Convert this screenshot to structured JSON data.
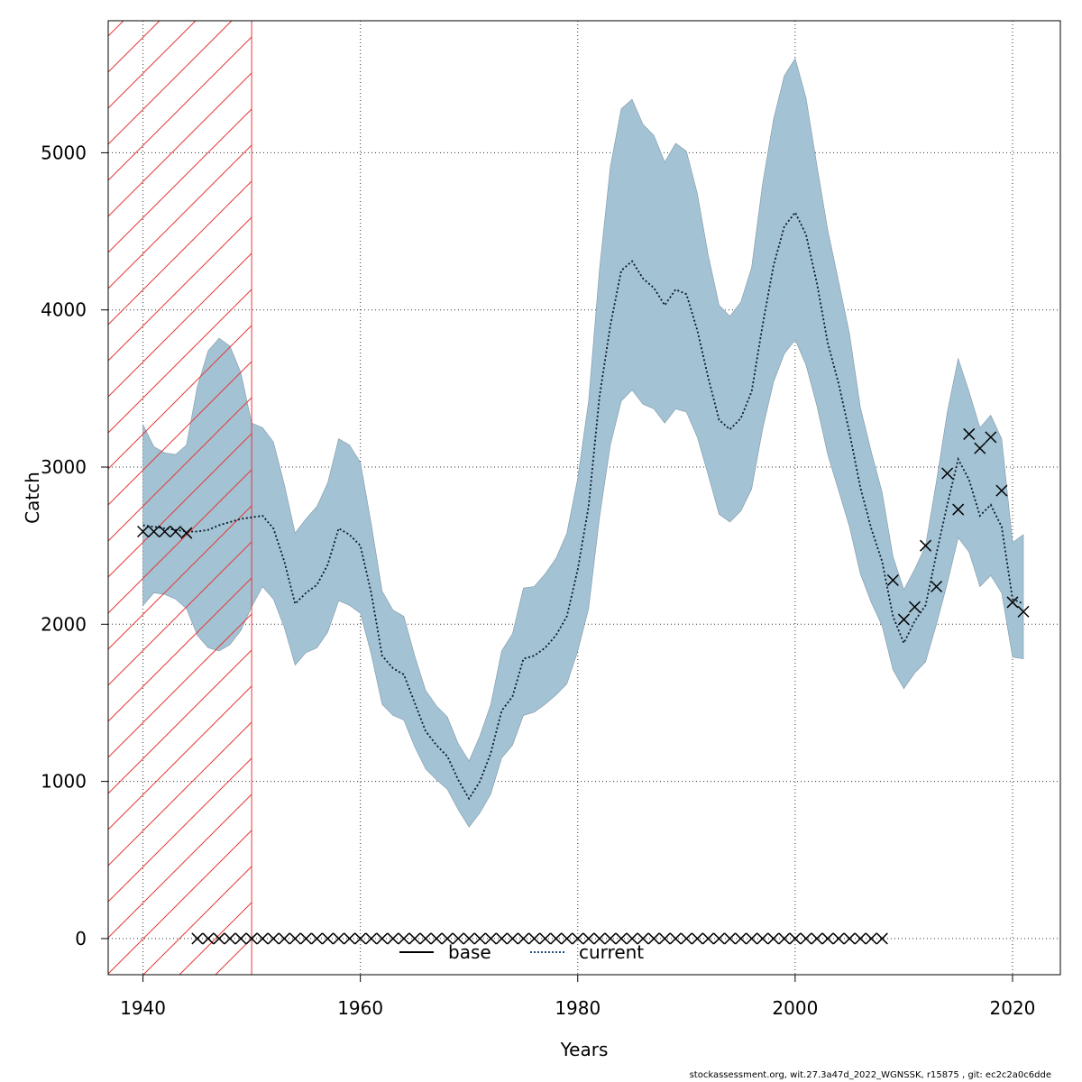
{
  "footer": "stockassessment.org, wit.27.3a47d_2022_WGNSSK, r15875 , git: ec2c2a0c6dde",
  "chart_data": {
    "type": "line",
    "xlabel": "Years",
    "ylabel": "Catch",
    "xlim": [
      1936.8,
      2024.4
    ],
    "ylim": [
      -230,
      5840
    ],
    "grid": true,
    "x_ticks": [
      1940,
      1960,
      1980,
      2000,
      2020
    ],
    "y_ticks": [
      0,
      1000,
      2000,
      3000,
      4000,
      5000
    ],
    "shaded_region": {
      "x_start": 1936.8,
      "x_end": 1950,
      "style": "red-hatch"
    },
    "colors": {
      "band": "#a3c2d4",
      "band_edge": "#7f98a8",
      "current": "#1f4e79",
      "base": "#000000",
      "hatch": "#e23a3a",
      "grid": "#333333"
    },
    "legend": {
      "placement": "bottom-center",
      "entries": [
        {
          "name": "base",
          "style": "solid"
        },
        {
          "name": "current",
          "style": "dotted"
        }
      ]
    },
    "years": [
      1940,
      1941,
      1942,
      1943,
      1944,
      1945,
      1946,
      1947,
      1948,
      1949,
      1950,
      1951,
      1952,
      1953,
      1954,
      1955,
      1956,
      1957,
      1958,
      1959,
      1960,
      1961,
      1962,
      1963,
      1964,
      1965,
      1966,
      1967,
      1968,
      1969,
      1970,
      1971,
      1972,
      1973,
      1974,
      1975,
      1976,
      1977,
      1978,
      1979,
      1980,
      1981,
      1982,
      1983,
      1984,
      1985,
      1986,
      1987,
      1988,
      1989,
      1990,
      1991,
      1992,
      1993,
      1994,
      1995,
      1996,
      1997,
      1998,
      1999,
      2000,
      2001,
      2002,
      2003,
      2004,
      2005,
      2006,
      2007,
      2008,
      2009,
      2010,
      2011,
      2012,
      2013,
      2014,
      2015,
      2016,
      2017,
      2018,
      2019,
      2020,
      2021
    ],
    "series": [
      {
        "name": "current",
        "values": [
          2630,
          2620,
          2610,
          2600,
          2590,
          2590,
          2600,
          2630,
          2650,
          2670,
          2680,
          2690,
          2610,
          2400,
          2130,
          2200,
          2250,
          2380,
          2610,
          2570,
          2500,
          2200,
          1800,
          1720,
          1680,
          1500,
          1320,
          1230,
          1160,
          1010,
          890,
          1000,
          1180,
          1450,
          1540,
          1780,
          1800,
          1850,
          1930,
          2050,
          2350,
          2750,
          3450,
          3900,
          4250,
          4310,
          4200,
          4140,
          4030,
          4130,
          4100,
          3870,
          3570,
          3300,
          3240,
          3310,
          3480,
          3900,
          4280,
          4530,
          4620,
          4480,
          4170,
          3790,
          3530,
          3220,
          2870,
          2610,
          2400,
          2050,
          1880,
          2020,
          2120,
          2450,
          2760,
          3050,
          2920,
          2690,
          2760,
          2620,
          2160,
          2130
        ]
      },
      {
        "name": "upper",
        "values": [
          3270,
          3130,
          3090,
          3080,
          3140,
          3510,
          3740,
          3820,
          3770,
          3600,
          3280,
          3250,
          3160,
          2890,
          2580,
          2670,
          2750,
          2900,
          3180,
          3140,
          3030,
          2640,
          2210,
          2090,
          2050,
          1800,
          1580,
          1480,
          1410,
          1240,
          1130,
          1290,
          1490,
          1830,
          1940,
          2230,
          2240,
          2320,
          2420,
          2580,
          2930,
          3420,
          4260,
          4910,
          5280,
          5340,
          5180,
          5110,
          4940,
          5060,
          5010,
          4740,
          4350,
          4030,
          3960,
          4050,
          4270,
          4800,
          5210,
          5490,
          5600,
          5350,
          4920,
          4510,
          4180,
          3850,
          3380,
          3100,
          2840,
          2430,
          2220,
          2350,
          2500,
          2910,
          3350,
          3690,
          3480,
          3250,
          3330,
          3180,
          2520,
          2570
        ]
      },
      {
        "name": "lower",
        "values": [
          2120,
          2200,
          2190,
          2160,
          2100,
          1930,
          1850,
          1830,
          1870,
          1960,
          2110,
          2240,
          2160,
          1980,
          1740,
          1820,
          1850,
          1950,
          2150,
          2120,
          2070,
          1810,
          1490,
          1420,
          1390,
          1220,
          1080,
          1010,
          950,
          820,
          710,
          800,
          920,
          1150,
          1230,
          1420,
          1440,
          1490,
          1550,
          1620,
          1830,
          2100,
          2680,
          3140,
          3420,
          3490,
          3400,
          3370,
          3280,
          3370,
          3350,
          3190,
          2950,
          2700,
          2650,
          2720,
          2860,
          3240,
          3540,
          3720,
          3810,
          3650,
          3390,
          3080,
          2850,
          2620,
          2320,
          2140,
          1990,
          1710,
          1590,
          1690,
          1760,
          2000,
          2260,
          2550,
          2460,
          2240,
          2310,
          2200,
          1790,
          1780
        ]
      }
    ],
    "observed_catch": {
      "marker": "x",
      "points": [
        {
          "x": 1940,
          "y": 2590
        },
        {
          "x": 1941,
          "y": 2590
        },
        {
          "x": 1942,
          "y": 2590
        },
        {
          "x": 1943,
          "y": 2590
        },
        {
          "x": 1944,
          "y": 2580
        },
        {
          "x": 1945,
          "y": 0
        },
        {
          "x": 1946,
          "y": 0
        },
        {
          "x": 1947,
          "y": 0
        },
        {
          "x": 1948,
          "y": 0
        },
        {
          "x": 1949,
          "y": 0
        },
        {
          "x": 1950,
          "y": 0
        },
        {
          "x": 1951,
          "y": 0
        },
        {
          "x": 1952,
          "y": 0
        },
        {
          "x": 1953,
          "y": 0
        },
        {
          "x": 1954,
          "y": 0
        },
        {
          "x": 1955,
          "y": 0
        },
        {
          "x": 1956,
          "y": 0
        },
        {
          "x": 1957,
          "y": 0
        },
        {
          "x": 1958,
          "y": 0
        },
        {
          "x": 1959,
          "y": 0
        },
        {
          "x": 1960,
          "y": 0
        },
        {
          "x": 1961,
          "y": 0
        },
        {
          "x": 1962,
          "y": 0
        },
        {
          "x": 1963,
          "y": 0
        },
        {
          "x": 1964,
          "y": 0
        },
        {
          "x": 1965,
          "y": 0
        },
        {
          "x": 1966,
          "y": 0
        },
        {
          "x": 1967,
          "y": 0
        },
        {
          "x": 1968,
          "y": 0
        },
        {
          "x": 1969,
          "y": 0
        },
        {
          "x": 1970,
          "y": 0
        },
        {
          "x": 1971,
          "y": 0
        },
        {
          "x": 1972,
          "y": 0
        },
        {
          "x": 1973,
          "y": 0
        },
        {
          "x": 1974,
          "y": 0
        },
        {
          "x": 1975,
          "y": 0
        },
        {
          "x": 1976,
          "y": 0
        },
        {
          "x": 1977,
          "y": 0
        },
        {
          "x": 1978,
          "y": 0
        },
        {
          "x": 1979,
          "y": 0
        },
        {
          "x": 1980,
          "y": 0
        },
        {
          "x": 1981,
          "y": 0
        },
        {
          "x": 1982,
          "y": 0
        },
        {
          "x": 1983,
          "y": 0
        },
        {
          "x": 1984,
          "y": 0
        },
        {
          "x": 1985,
          "y": 0
        },
        {
          "x": 1986,
          "y": 0
        },
        {
          "x": 1987,
          "y": 0
        },
        {
          "x": 1988,
          "y": 0
        },
        {
          "x": 1989,
          "y": 0
        },
        {
          "x": 1990,
          "y": 0
        },
        {
          "x": 1991,
          "y": 0
        },
        {
          "x": 1992,
          "y": 0
        },
        {
          "x": 1993,
          "y": 0
        },
        {
          "x": 1994,
          "y": 0
        },
        {
          "x": 1995,
          "y": 0
        },
        {
          "x": 1996,
          "y": 0
        },
        {
          "x": 1997,
          "y": 0
        },
        {
          "x": 1998,
          "y": 0
        },
        {
          "x": 1999,
          "y": 0
        },
        {
          "x": 2000,
          "y": 0
        },
        {
          "x": 2001,
          "y": 0
        },
        {
          "x": 2002,
          "y": 0
        },
        {
          "x": 2003,
          "y": 0
        },
        {
          "x": 2004,
          "y": 0
        },
        {
          "x": 2005,
          "y": 0
        },
        {
          "x": 2006,
          "y": 0
        },
        {
          "x": 2007,
          "y": 0
        },
        {
          "x": 2008,
          "y": 0
        },
        {
          "x": 2009,
          "y": 2280
        },
        {
          "x": 2010,
          "y": 2030
        },
        {
          "x": 2011,
          "y": 2110
        },
        {
          "x": 2012,
          "y": 2500
        },
        {
          "x": 2013,
          "y": 2240
        },
        {
          "x": 2014,
          "y": 2960
        },
        {
          "x": 2015,
          "y": 2730
        },
        {
          "x": 2016,
          "y": 3210
        },
        {
          "x": 2017,
          "y": 3120
        },
        {
          "x": 2018,
          "y": 3190
        },
        {
          "x": 2019,
          "y": 2850
        },
        {
          "x": 2020,
          "y": 2140
        },
        {
          "x": 2021,
          "y": 2080
        }
      ]
    }
  }
}
